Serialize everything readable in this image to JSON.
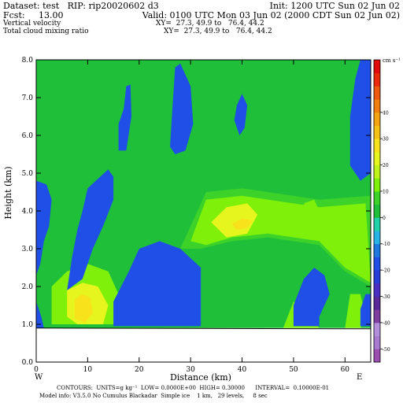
{
  "header": {
    "dataset": "Dataset: test   RIP: rip20020602 d3",
    "init": "Init: 1200 UTC Sun 02 Jun 02",
    "fcst": "Fcst:     13.00",
    "valid": "Valid: 0100 UTC Mon 03 Jun 02 (2000 CDT Sun 02 Jun 02)",
    "field1": "Vertical velocity",
    "field1_xy": "XY=  27.3, 49.9 to   76.4, 44.2",
    "field2": "Total cloud mixing ratio",
    "field2_xy": "XY=  27.3, 49.9 to   76.4, 44.2"
  },
  "footer": {
    "contours": "CONTOURS:  UNITS=g kg⁻¹  LOW= 0.0000E+00  HIGH= 0.30000      INTERVAL=  0.10000E-01",
    "model": "Model info: V3.5.0 No Cumulus Blackadar  Simple ice    1 km,   29 levels,     8 sec"
  },
  "chart_data": {
    "type": "heatmap",
    "xlabel": "Distance (km)",
    "ylabel": "Height (km)",
    "xlim": [
      0,
      65
    ],
    "ylim": [
      0,
      8
    ],
    "x_ticks": [
      "0",
      "10",
      "20",
      "30",
      "40",
      "50",
      "60"
    ],
    "y_ticks": [
      "0.0",
      "1.0",
      "2.0",
      "3.0",
      "4.0",
      "5.0",
      "6.0",
      "7.0",
      "8.0"
    ],
    "left_end_label": "W",
    "right_end_label": "E",
    "terrain_top_km": 0.9,
    "colorbar": {
      "unit_label": "cm s⁻¹",
      "tick_labels": [
        "-50",
        "-40",
        "-30",
        "-20",
        "-10",
        "0",
        "10",
        "20",
        "30",
        "40"
      ],
      "colors": [
        "#9b4fb0",
        "#a77bd0",
        "#b28edc",
        "#7f3fa0",
        "#5b2a9a",
        "#4b2ec2",
        "#2a3ed8",
        "#1f4fe6",
        "#1f78e0",
        "#28b4e6",
        "#21d2a8",
        "#1fbf3a",
        "#3cd22a",
        "#7ff00a",
        "#bff31a",
        "#e6f51d",
        "#f8e21c",
        "#f7c218",
        "#f4a313",
        "#f17f10",
        "#ee5a0e",
        "#ea2a0a",
        "#e10b0b"
      ]
    },
    "regions": [
      {
        "name": "background",
        "level": "0",
        "color": "#1fbf3a",
        "polygon": [
          [
            0,
            0.9
          ],
          [
            65,
            0.9
          ],
          [
            65,
            8
          ],
          [
            0,
            8
          ]
        ]
      },
      {
        "name": "updraft-layer-mid",
        "level": "2",
        "color": "#3cd22a",
        "polygon": [
          [
            28,
            3.0
          ],
          [
            33,
            4.5
          ],
          [
            40,
            4.6
          ],
          [
            55,
            4.3
          ],
          [
            65,
            4.4
          ],
          [
            65,
            2.0
          ],
          [
            60,
            2.4
          ],
          [
            55,
            3.1
          ],
          [
            45,
            3.3
          ],
          [
            38,
            3.2
          ],
          [
            32,
            3.0
          ]
        ]
      },
      {
        "name": "updraft-layer-mid-strong",
        "level": "5",
        "color": "#7ff00a",
        "polygon": [
          [
            30,
            3.2
          ],
          [
            33,
            4.3
          ],
          [
            40,
            4.4
          ],
          [
            55,
            4.1
          ],
          [
            64,
            4.2
          ],
          [
            65,
            2.1
          ],
          [
            60,
            2.5
          ],
          [
            55,
            3.2
          ],
          [
            45,
            3.4
          ],
          [
            38,
            3.3
          ],
          [
            33,
            3.1
          ]
        ]
      },
      {
        "name": "updraft-core-mid",
        "level": "10",
        "color": "#e6f51d",
        "polygon": [
          [
            34,
            3.7
          ],
          [
            37,
            4.1
          ],
          [
            41,
            4.2
          ],
          [
            43,
            3.9
          ],
          [
            41,
            3.4
          ],
          [
            37,
            3.3
          ]
        ]
      },
      {
        "name": "updraft-peak-mid",
        "level": "15",
        "color": "#f8e21c",
        "polygon": [
          [
            38,
            3.65
          ],
          [
            40,
            3.8
          ],
          [
            42,
            3.75
          ],
          [
            41,
            3.55
          ],
          [
            39,
            3.5
          ]
        ]
      },
      {
        "name": "updraft-small-right",
        "level": "5",
        "color": "#7ff00a",
        "polygon": [
          [
            52,
            4.2
          ],
          [
            53,
            3.8
          ],
          [
            55,
            4.0
          ],
          [
            54,
            4.3
          ]
        ]
      },
      {
        "name": "updraft-lower-left",
        "level": "5",
        "color": "#7ff00a",
        "polygon": [
          [
            3,
            1.0
          ],
          [
            3,
            2.0
          ],
          [
            6,
            2.4
          ],
          [
            10,
            2.6
          ],
          [
            14,
            2.4
          ],
          [
            16,
            1.8
          ],
          [
            15,
            1.0
          ]
        ]
      },
      {
        "name": "updraft-lower-left-core",
        "level": "10",
        "color": "#e6f51d",
        "polygon": [
          [
            6,
            1.2
          ],
          [
            6,
            1.9
          ],
          [
            9,
            2.1
          ],
          [
            12,
            2.0
          ],
          [
            14,
            1.5
          ],
          [
            13,
            1.0
          ],
          [
            8,
            1.0
          ]
        ]
      },
      {
        "name": "updraft-lower-left-peak",
        "level": "15",
        "color": "#f8e21c",
        "polygon": [
          [
            7.5,
            1.15
          ],
          [
            7.5,
            1.65
          ],
          [
            9,
            1.8
          ],
          [
            10.5,
            1.7
          ],
          [
            11,
            1.3
          ],
          [
            9.5,
            1.05
          ]
        ]
      },
      {
        "name": "updraft-lower-right",
        "level": "5",
        "color": "#7ff00a",
        "polygon": [
          [
            48,
            0.9
          ],
          [
            50,
            1.6
          ],
          [
            52,
            1.4
          ],
          [
            55,
            0.9
          ]
        ]
      },
      {
        "name": "updraft-far-right",
        "level": "5",
        "color": "#7ff00a",
        "polygon": [
          [
            60,
            0.9
          ],
          [
            61,
            1.8
          ],
          [
            63,
            1.8
          ],
          [
            64,
            1.2
          ],
          [
            63,
            0.9
          ]
        ]
      },
      {
        "name": "downdraft-left-edge",
        "level": "-5",
        "color": "#1f4fe6",
        "polygon": [
          [
            0,
            2.3
          ],
          [
            0,
            4.8
          ],
          [
            2,
            4.7
          ],
          [
            3,
            4.3
          ],
          [
            2.5,
            3.6
          ],
          [
            1.5,
            3.2
          ],
          [
            0.8,
            2.6
          ]
        ]
      },
      {
        "name": "downdraft-left-bottom",
        "level": "-5",
        "color": "#1f4fe6",
        "polygon": [
          [
            0,
            0.9
          ],
          [
            0,
            1.6
          ],
          [
            1,
            1.2
          ],
          [
            1.5,
            0.9
          ]
        ]
      },
      {
        "name": "downdraft-column-upper",
        "level": "-5",
        "color": "#1f4fe6",
        "polygon": [
          [
            16,
            5.6
          ],
          [
            16,
            6.3
          ],
          [
            17,
            6.7
          ],
          [
            17.5,
            7.3
          ],
          [
            18.3,
            7.35
          ],
          [
            18.5,
            6.5
          ],
          [
            17.5,
            5.6
          ]
        ]
      },
      {
        "name": "downdraft-column-tall",
        "level": "-5",
        "color": "#1f4fe6",
        "polygon": [
          [
            26,
            5.7
          ],
          [
            26.5,
            6.8
          ],
          [
            27,
            7.8
          ],
          [
            28,
            7.9
          ],
          [
            30,
            7.3
          ],
          [
            30.5,
            6.3
          ],
          [
            29,
            5.6
          ],
          [
            27,
            5.5
          ]
        ]
      },
      {
        "name": "downdraft-small-top",
        "level": "-5",
        "color": "#1f4fe6",
        "polygon": [
          [
            38.5,
            6.4
          ],
          [
            39,
            6.8
          ],
          [
            40,
            7.1
          ],
          [
            41,
            6.8
          ],
          [
            40.5,
            6.2
          ],
          [
            39.5,
            6.0
          ]
        ]
      },
      {
        "name": "downdraft-left-slope",
        "level": "-5",
        "color": "#1f4fe6",
        "polygon": [
          [
            10,
            4.6
          ],
          [
            14,
            5.1
          ],
          [
            15,
            4.9
          ],
          [
            15,
            4.3
          ],
          [
            13,
            3.6
          ],
          [
            11,
            3.0
          ],
          [
            9,
            2.2
          ],
          [
            6,
            1.9
          ],
          [
            7,
            2.8
          ],
          [
            8,
            3.5
          ],
          [
            9,
            4.0
          ]
        ]
      },
      {
        "name": "downdraft-low-mid",
        "level": "-5",
        "color": "#1f4fe6",
        "polygon": [
          [
            15,
            0.95
          ],
          [
            15,
            1.6
          ],
          [
            18,
            2.4
          ],
          [
            20,
            3.0
          ],
          [
            24,
            3.2
          ],
          [
            28,
            3.0
          ],
          [
            32,
            2.5
          ],
          [
            32,
            0.95
          ]
        ]
      },
      {
        "name": "downdraft-low-right",
        "level": "-5",
        "color": "#1f4fe6",
        "polygon": [
          [
            50,
            0.95
          ],
          [
            50,
            1.5
          ],
          [
            52,
            2.2
          ],
          [
            54,
            2.5
          ],
          [
            56,
            2.3
          ],
          [
            57,
            1.8
          ],
          [
            55,
            1.2
          ],
          [
            55,
            0.95
          ]
        ]
      },
      {
        "name": "downdraft-right-edge-top",
        "level": "-5",
        "color": "#1f4fe6",
        "polygon": [
          [
            61,
            5.2
          ],
          [
            61,
            6.5
          ],
          [
            62,
            7.5
          ],
          [
            63,
            8.0
          ],
          [
            65,
            8.0
          ],
          [
            65,
            5.0
          ],
          [
            63,
            4.8
          ]
        ]
      },
      {
        "name": "downdraft-right-edge-bottom",
        "level": "-5",
        "color": "#1f4fe6",
        "polygon": [
          [
            63,
            0.95
          ],
          [
            63,
            1.4
          ],
          [
            64,
            1.8
          ],
          [
            65,
            1.8
          ],
          [
            65,
            0.95
          ]
        ]
      }
    ]
  }
}
